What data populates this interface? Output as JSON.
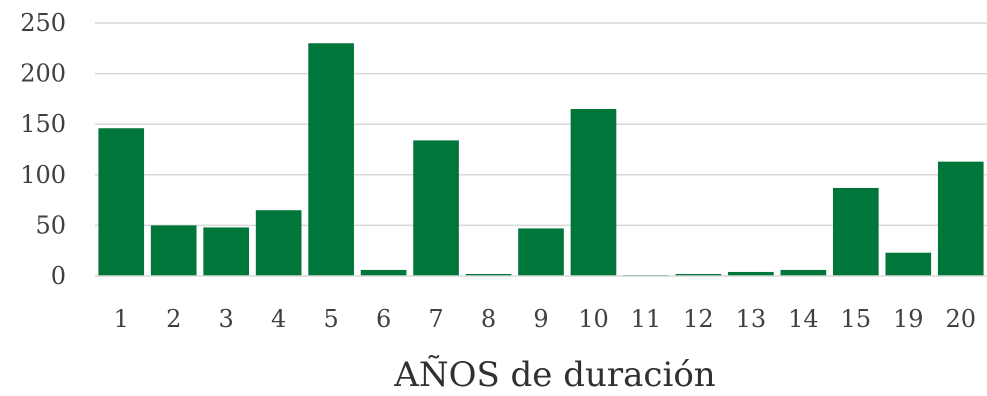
{
  "chart_data": {
    "type": "bar",
    "title": "",
    "xlabel": "AÑOS de duración",
    "ylabel": "",
    "ylim": [
      0,
      250
    ],
    "yticks": [
      0,
      50,
      100,
      150,
      200,
      250
    ],
    "grid": true,
    "legend": "none",
    "categories": [
      "1",
      "2",
      "3",
      "4",
      "5",
      "6",
      "7",
      "8",
      "9",
      "10",
      "11",
      "12",
      "13",
      "14",
      "15",
      "19",
      "20"
    ],
    "values": [
      146,
      50,
      48,
      65,
      230,
      6,
      134,
      2,
      47,
      165,
      1,
      2,
      4,
      6,
      87,
      23,
      113
    ],
    "bar_color": "#00763A",
    "grid_color": "#D9D9D9"
  }
}
